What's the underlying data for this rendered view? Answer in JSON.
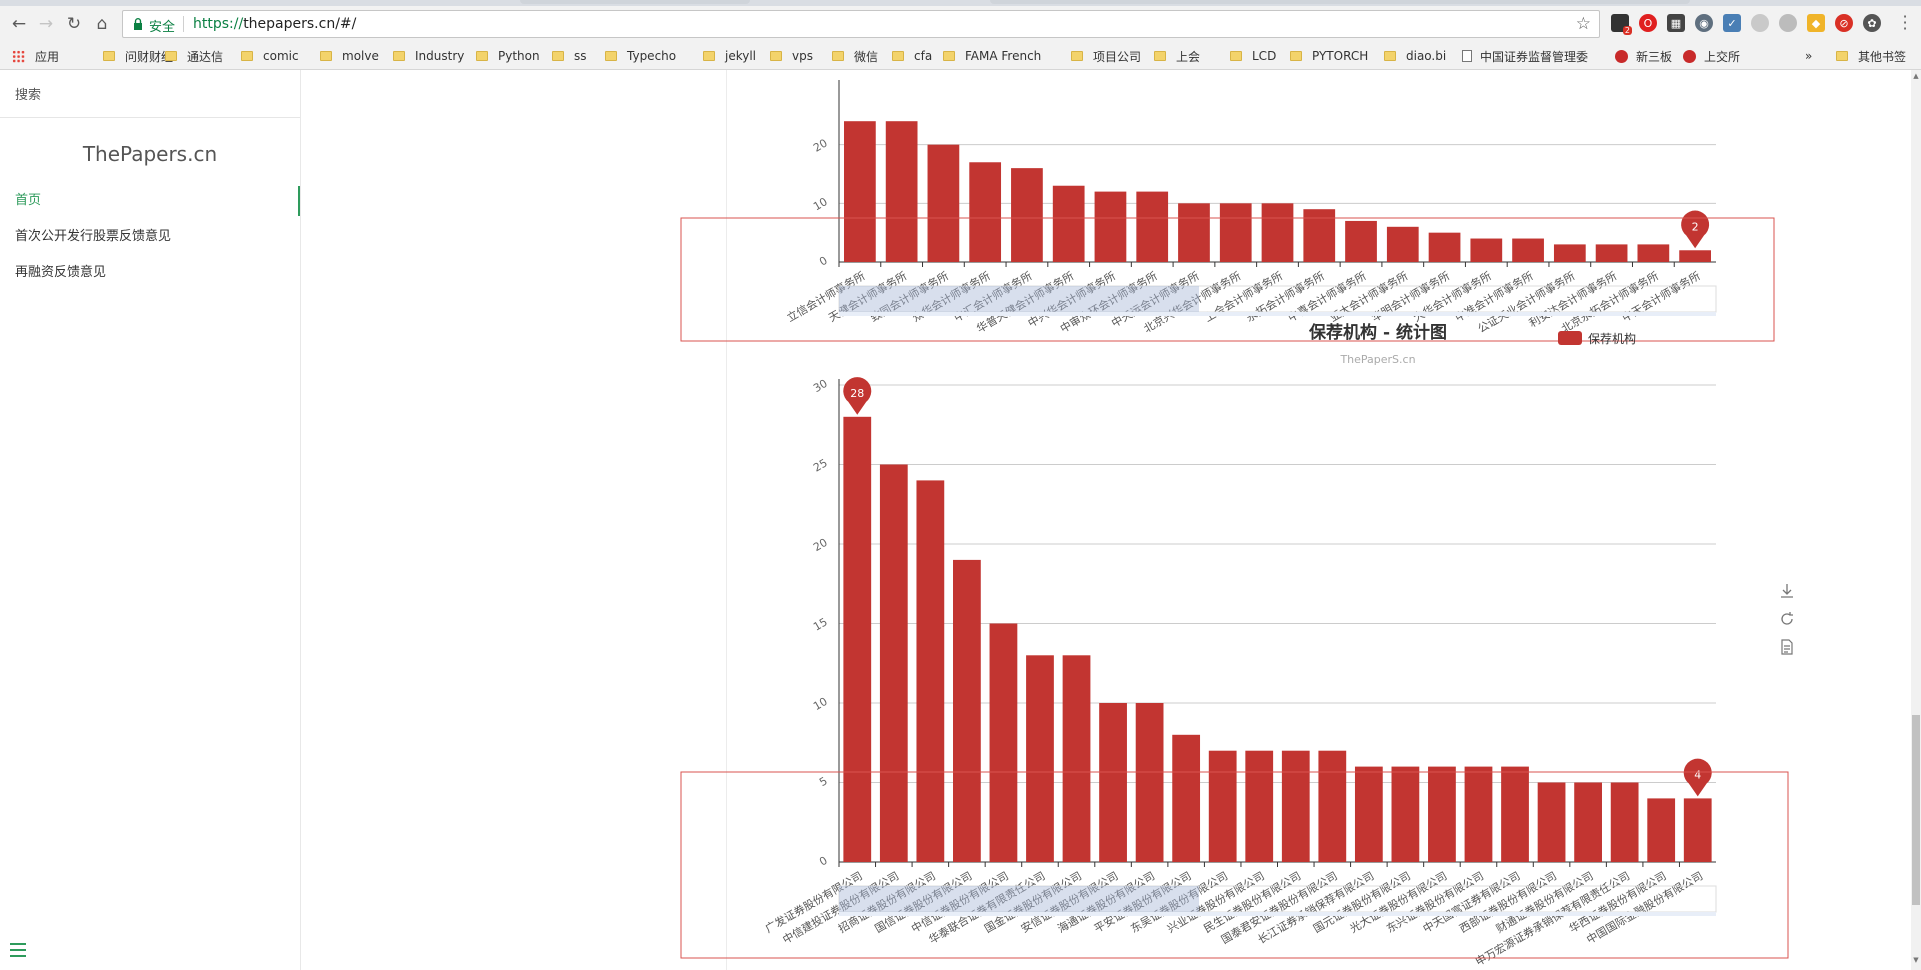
{
  "browser": {
    "url_scheme": "https://",
    "url_rest": "thepapers.cn/#/",
    "secure_label": "安全",
    "nav": {
      "back_icon": "arrow-left-icon",
      "forward_icon": "arrow-right-icon",
      "reload_icon": "reload-icon",
      "home_icon": "home-icon"
    },
    "extensions_badge": "2",
    "bookmarks": [
      {
        "label": "应用",
        "icon": "apps-icon"
      },
      {
        "label": "问财财经",
        "icon": "folder-icon"
      },
      {
        "label": "通达信",
        "icon": "folder-icon"
      },
      {
        "label": "comic",
        "icon": "folder-icon"
      },
      {
        "label": "molve",
        "icon": "folder-icon"
      },
      {
        "label": "Industry",
        "icon": "folder-icon"
      },
      {
        "label": "Python",
        "icon": "folder-icon"
      },
      {
        "label": "ss",
        "icon": "folder-icon"
      },
      {
        "label": "Typecho",
        "icon": "folder-icon"
      },
      {
        "label": "jekyll",
        "icon": "folder-icon"
      },
      {
        "label": "vps",
        "icon": "folder-icon"
      },
      {
        "label": "微信",
        "icon": "folder-icon"
      },
      {
        "label": "cfa",
        "icon": "folder-icon"
      },
      {
        "label": "FAMA French",
        "icon": "folder-icon"
      },
      {
        "label": "项目公司",
        "icon": "folder-icon"
      },
      {
        "label": "上会",
        "icon": "folder-icon"
      },
      {
        "label": "LCD",
        "icon": "folder-icon"
      },
      {
        "label": "PYTORCH",
        "icon": "folder-icon"
      },
      {
        "label": "diao.bi",
        "icon": "folder-icon"
      },
      {
        "label": "中国证券监督管理委",
        "icon": "page-icon"
      },
      {
        "label": "新三板",
        "icon": "site-icon"
      },
      {
        "label": "上交所",
        "icon": "site-icon"
      },
      {
        "label": "»",
        "icon": ""
      },
      {
        "label": "其他书签",
        "icon": "folder-icon"
      }
    ]
  },
  "sidebar": {
    "search_label": "搜索",
    "site_title": "ThePapers.cn",
    "items": [
      {
        "label": "首页",
        "active": true
      },
      {
        "label": "首次公开发行股票反馈意见",
        "active": false
      },
      {
        "label": "再融资反馈意见",
        "active": false
      }
    ],
    "menu_icon": "hamburger-icon"
  },
  "charts": {
    "toolbox_icons": [
      "download-icon",
      "refresh-icon",
      "data-view-icon"
    ]
  },
  "chart_data": [
    {
      "type": "bar",
      "title": "",
      "partially_visible": true,
      "categories": [
        "立信会计师事务所",
        "天健会计师事务所",
        "致同会计师事务所",
        "众华会计师事务所",
        "中汇会计师事务所",
        "华普天健会计师事务所",
        "中兴华会计师事务所",
        "中审众环会计师事务所",
        "中天运会计师事务所",
        "北京兴华会计师事务所",
        "上会会计师事务所",
        "永拓会计师事务所",
        "中喜会计师事务所",
        "亚太会计师事务所",
        "华明会计师事务所",
        "大华会计师事务所",
        "中准会计师事务所",
        "公证天业会计师事务所",
        "利安达会计师事务所",
        "北京永拓会计师事务所",
        "中天会计师事务所"
      ],
      "values": [
        24,
        24,
        20,
        17,
        16,
        13,
        12,
        12,
        10,
        10,
        10,
        9,
        7,
        6,
        5,
        4,
        4,
        3,
        3,
        3,
        2
      ],
      "visible_axis_labels": [
        "大华明会计师事务所",
        "大信中和会计师事务所",
        "立信会计师事务所",
        "天健会计师事务所",
        "众华会计师事务所",
        "中汇会计师事务所",
        "致同会计师事务所",
        "大华会计师事务所",
        "中天会计师事务所"
      ],
      "yticks": [
        0,
        10,
        20
      ],
      "ylim": [
        0,
        30
      ],
      "markpoints": [
        {
          "label": "2"
        }
      ],
      "grid": true
    },
    {
      "type": "bar",
      "title": "保荐机构 - 统计图",
      "subtitle": "ThePaperS.cn",
      "legend": [
        "保荐机构"
      ],
      "legend_position": "top-right",
      "categories": [
        "广发证券股份有限公司",
        "中信建投证券股份有限公司",
        "招商证券股份有限公司",
        "国信证券股份有限公司",
        "中信证券股份有限公司",
        "华泰联合证券有限责任公司",
        "国金证券股份有限公司",
        "安信证券股份有限公司",
        "海通证券股份有限公司",
        "平安证券股份有限公司",
        "东吴证券股份有限公司",
        "兴业证券股份有限公司",
        "民生证券股份有限公司",
        "国泰君安证券股份有限公司",
        "长江证券承销保荐有限公司",
        "国元证券股份有限公司",
        "光大证券股份有限公司",
        "东兴证券股份有限公司",
        "中天国富证券有限公司",
        "西部证券股份有限公司",
        "财通证券股份有限公司",
        "申万宏源证券承销保荐有限责任公司",
        "华西证券股份有限公司",
        "中国国际金融股份有限公司"
      ],
      "values": [
        28,
        25,
        24,
        19,
        15,
        13,
        13,
        10,
        10,
        8,
        7,
        7,
        7,
        7,
        6,
        6,
        6,
        6,
        6,
        5,
        5,
        5,
        4,
        4
      ],
      "yticks": [
        0,
        5,
        10,
        15,
        20,
        25,
        30
      ],
      "ylim": [
        0,
        30
      ],
      "markpoints": [
        {
          "label": "28"
        },
        {
          "label": "4"
        }
      ],
      "grid": true,
      "bar_color": "#c23531"
    }
  ]
}
